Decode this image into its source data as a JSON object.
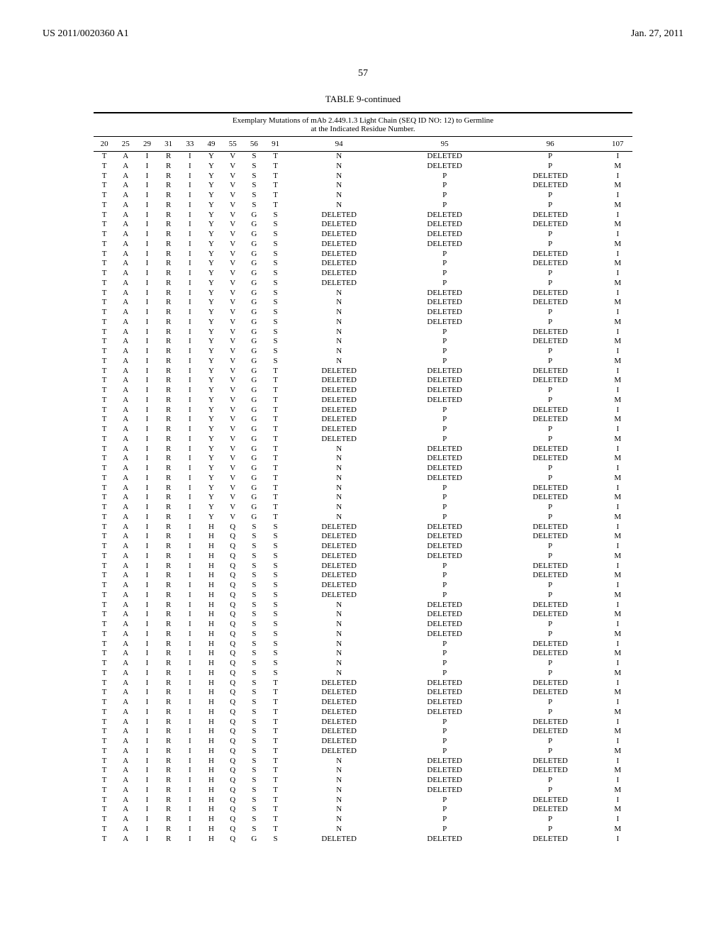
{
  "header": {
    "pub_number": "US 2011/0020360 A1",
    "pub_date": "Jan. 27, 2011",
    "page_num": "57"
  },
  "table": {
    "caption": "TABLE 9-continued",
    "title": "Exemplary Mutations of mAb 2.449.1.3 Light Chain (SEQ ID NO: 12) to Germline",
    "subtitle": "at the Indicated Residue Number.",
    "columns": [
      "20",
      "25",
      "29",
      "31",
      "33",
      "49",
      "55",
      "56",
      "91",
      "94",
      "95",
      "96",
      "107"
    ],
    "rows": [
      [
        "T",
        "A",
        "I",
        "R",
        "I",
        "Y",
        "V",
        "S",
        "T",
        "N",
        "DELETED",
        "P",
        "I"
      ],
      [
        "T",
        "A",
        "I",
        "R",
        "I",
        "Y",
        "V",
        "S",
        "T",
        "N",
        "DELETED",
        "P",
        "M"
      ],
      [
        "T",
        "A",
        "I",
        "R",
        "I",
        "Y",
        "V",
        "S",
        "T",
        "N",
        "P",
        "DELETED",
        "I"
      ],
      [
        "T",
        "A",
        "I",
        "R",
        "I",
        "Y",
        "V",
        "S",
        "T",
        "N",
        "P",
        "DELETED",
        "M"
      ],
      [
        "T",
        "A",
        "I",
        "R",
        "I",
        "Y",
        "V",
        "S",
        "T",
        "N",
        "P",
        "P",
        "I"
      ],
      [
        "T",
        "A",
        "I",
        "R",
        "I",
        "Y",
        "V",
        "S",
        "T",
        "N",
        "P",
        "P",
        "M"
      ],
      [
        "T",
        "A",
        "I",
        "R",
        "I",
        "Y",
        "V",
        "G",
        "S",
        "DELETED",
        "DELETED",
        "DELETED",
        "I"
      ],
      [
        "T",
        "A",
        "I",
        "R",
        "I",
        "Y",
        "V",
        "G",
        "S",
        "DELETED",
        "DELETED",
        "DELETED",
        "M"
      ],
      [
        "T",
        "A",
        "I",
        "R",
        "I",
        "Y",
        "V",
        "G",
        "S",
        "DELETED",
        "DELETED",
        "P",
        "I"
      ],
      [
        "T",
        "A",
        "I",
        "R",
        "I",
        "Y",
        "V",
        "G",
        "S",
        "DELETED",
        "DELETED",
        "P",
        "M"
      ],
      [
        "T",
        "A",
        "I",
        "R",
        "I",
        "Y",
        "V",
        "G",
        "S",
        "DELETED",
        "P",
        "DELETED",
        "I"
      ],
      [
        "T",
        "A",
        "I",
        "R",
        "I",
        "Y",
        "V",
        "G",
        "S",
        "DELETED",
        "P",
        "DELETED",
        "M"
      ],
      [
        "T",
        "A",
        "I",
        "R",
        "I",
        "Y",
        "V",
        "G",
        "S",
        "DELETED",
        "P",
        "P",
        "I"
      ],
      [
        "T",
        "A",
        "I",
        "R",
        "I",
        "Y",
        "V",
        "G",
        "S",
        "DELETED",
        "P",
        "P",
        "M"
      ],
      [
        "T",
        "A",
        "I",
        "R",
        "I",
        "Y",
        "V",
        "G",
        "S",
        "N",
        "DELETED",
        "DELETED",
        "I"
      ],
      [
        "T",
        "A",
        "I",
        "R",
        "I",
        "Y",
        "V",
        "G",
        "S",
        "N",
        "DELETED",
        "DELETED",
        "M"
      ],
      [
        "T",
        "A",
        "I",
        "R",
        "I",
        "Y",
        "V",
        "G",
        "S",
        "N",
        "DELETED",
        "P",
        "I"
      ],
      [
        "T",
        "A",
        "I",
        "R",
        "I",
        "Y",
        "V",
        "G",
        "S",
        "N",
        "DELETED",
        "P",
        "M"
      ],
      [
        "T",
        "A",
        "I",
        "R",
        "I",
        "Y",
        "V",
        "G",
        "S",
        "N",
        "P",
        "DELETED",
        "I"
      ],
      [
        "T",
        "A",
        "I",
        "R",
        "I",
        "Y",
        "V",
        "G",
        "S",
        "N",
        "P",
        "DELETED",
        "M"
      ],
      [
        "T",
        "A",
        "I",
        "R",
        "I",
        "Y",
        "V",
        "G",
        "S",
        "N",
        "P",
        "P",
        "I"
      ],
      [
        "T",
        "A",
        "I",
        "R",
        "I",
        "Y",
        "V",
        "G",
        "S",
        "N",
        "P",
        "P",
        "M"
      ],
      [
        "T",
        "A",
        "I",
        "R",
        "I",
        "Y",
        "V",
        "G",
        "T",
        "DELETED",
        "DELETED",
        "DELETED",
        "I"
      ],
      [
        "T",
        "A",
        "I",
        "R",
        "I",
        "Y",
        "V",
        "G",
        "T",
        "DELETED",
        "DELETED",
        "DELETED",
        "M"
      ],
      [
        "T",
        "A",
        "I",
        "R",
        "I",
        "Y",
        "V",
        "G",
        "T",
        "DELETED",
        "DELETED",
        "P",
        "I"
      ],
      [
        "T",
        "A",
        "I",
        "R",
        "I",
        "Y",
        "V",
        "G",
        "T",
        "DELETED",
        "DELETED",
        "P",
        "M"
      ],
      [
        "T",
        "A",
        "I",
        "R",
        "I",
        "Y",
        "V",
        "G",
        "T",
        "DELETED",
        "P",
        "DELETED",
        "I"
      ],
      [
        "T",
        "A",
        "I",
        "R",
        "I",
        "Y",
        "V",
        "G",
        "T",
        "DELETED",
        "P",
        "DELETED",
        "M"
      ],
      [
        "T",
        "A",
        "I",
        "R",
        "I",
        "Y",
        "V",
        "G",
        "T",
        "DELETED",
        "P",
        "P",
        "I"
      ],
      [
        "T",
        "A",
        "I",
        "R",
        "I",
        "Y",
        "V",
        "G",
        "T",
        "DELETED",
        "P",
        "P",
        "M"
      ],
      [
        "T",
        "A",
        "I",
        "R",
        "I",
        "Y",
        "V",
        "G",
        "T",
        "N",
        "DELETED",
        "DELETED",
        "I"
      ],
      [
        "T",
        "A",
        "I",
        "R",
        "I",
        "Y",
        "V",
        "G",
        "T",
        "N",
        "DELETED",
        "DELETED",
        "M"
      ],
      [
        "T",
        "A",
        "I",
        "R",
        "I",
        "Y",
        "V",
        "G",
        "T",
        "N",
        "DELETED",
        "P",
        "I"
      ],
      [
        "T",
        "A",
        "I",
        "R",
        "I",
        "Y",
        "V",
        "G",
        "T",
        "N",
        "DELETED",
        "P",
        "M"
      ],
      [
        "T",
        "A",
        "I",
        "R",
        "I",
        "Y",
        "V",
        "G",
        "T",
        "N",
        "P",
        "DELETED",
        "I"
      ],
      [
        "T",
        "A",
        "I",
        "R",
        "I",
        "Y",
        "V",
        "G",
        "T",
        "N",
        "P",
        "DELETED",
        "M"
      ],
      [
        "T",
        "A",
        "I",
        "R",
        "I",
        "Y",
        "V",
        "G",
        "T",
        "N",
        "P",
        "P",
        "I"
      ],
      [
        "T",
        "A",
        "I",
        "R",
        "I",
        "Y",
        "V",
        "G",
        "T",
        "N",
        "P",
        "P",
        "M"
      ],
      [
        "T",
        "A",
        "I",
        "R",
        "I",
        "H",
        "Q",
        "S",
        "S",
        "DELETED",
        "DELETED",
        "DELETED",
        "I"
      ],
      [
        "T",
        "A",
        "I",
        "R",
        "I",
        "H",
        "Q",
        "S",
        "S",
        "DELETED",
        "DELETED",
        "DELETED",
        "M"
      ],
      [
        "T",
        "A",
        "I",
        "R",
        "I",
        "H",
        "Q",
        "S",
        "S",
        "DELETED",
        "DELETED",
        "P",
        "I"
      ],
      [
        "T",
        "A",
        "I",
        "R",
        "I",
        "H",
        "Q",
        "S",
        "S",
        "DELETED",
        "DELETED",
        "P",
        "M"
      ],
      [
        "T",
        "A",
        "I",
        "R",
        "I",
        "H",
        "Q",
        "S",
        "S",
        "DELETED",
        "P",
        "DELETED",
        "I"
      ],
      [
        "T",
        "A",
        "I",
        "R",
        "I",
        "H",
        "Q",
        "S",
        "S",
        "DELETED",
        "P",
        "DELETED",
        "M"
      ],
      [
        "T",
        "A",
        "I",
        "R",
        "I",
        "H",
        "Q",
        "S",
        "S",
        "DELETED",
        "P",
        "P",
        "I"
      ],
      [
        "T",
        "A",
        "I",
        "R",
        "I",
        "H",
        "Q",
        "S",
        "S",
        "DELETED",
        "P",
        "P",
        "M"
      ],
      [
        "T",
        "A",
        "I",
        "R",
        "I",
        "H",
        "Q",
        "S",
        "S",
        "N",
        "DELETED",
        "DELETED",
        "I"
      ],
      [
        "T",
        "A",
        "I",
        "R",
        "I",
        "H",
        "Q",
        "S",
        "S",
        "N",
        "DELETED",
        "DELETED",
        "M"
      ],
      [
        "T",
        "A",
        "I",
        "R",
        "I",
        "H",
        "Q",
        "S",
        "S",
        "N",
        "DELETED",
        "P",
        "I"
      ],
      [
        "T",
        "A",
        "I",
        "R",
        "I",
        "H",
        "Q",
        "S",
        "S",
        "N",
        "DELETED",
        "P",
        "M"
      ],
      [
        "T",
        "A",
        "I",
        "R",
        "I",
        "H",
        "Q",
        "S",
        "S",
        "N",
        "P",
        "DELETED",
        "I"
      ],
      [
        "T",
        "A",
        "I",
        "R",
        "I",
        "H",
        "Q",
        "S",
        "S",
        "N",
        "P",
        "DELETED",
        "M"
      ],
      [
        "T",
        "A",
        "I",
        "R",
        "I",
        "H",
        "Q",
        "S",
        "S",
        "N",
        "P",
        "P",
        "I"
      ],
      [
        "T",
        "A",
        "I",
        "R",
        "I",
        "H",
        "Q",
        "S",
        "S",
        "N",
        "P",
        "P",
        "M"
      ],
      [
        "T",
        "A",
        "I",
        "R",
        "I",
        "H",
        "Q",
        "S",
        "T",
        "DELETED",
        "DELETED",
        "DELETED",
        "I"
      ],
      [
        "T",
        "A",
        "I",
        "R",
        "I",
        "H",
        "Q",
        "S",
        "T",
        "DELETED",
        "DELETED",
        "DELETED",
        "M"
      ],
      [
        "T",
        "A",
        "I",
        "R",
        "I",
        "H",
        "Q",
        "S",
        "T",
        "DELETED",
        "DELETED",
        "P",
        "I"
      ],
      [
        "T",
        "A",
        "I",
        "R",
        "I",
        "H",
        "Q",
        "S",
        "T",
        "DELETED",
        "DELETED",
        "P",
        "M"
      ],
      [
        "T",
        "A",
        "I",
        "R",
        "I",
        "H",
        "Q",
        "S",
        "T",
        "DELETED",
        "P",
        "DELETED",
        "I"
      ],
      [
        "T",
        "A",
        "I",
        "R",
        "I",
        "H",
        "Q",
        "S",
        "T",
        "DELETED",
        "P",
        "DELETED",
        "M"
      ],
      [
        "T",
        "A",
        "I",
        "R",
        "I",
        "H",
        "Q",
        "S",
        "T",
        "DELETED",
        "P",
        "P",
        "I"
      ],
      [
        "T",
        "A",
        "I",
        "R",
        "I",
        "H",
        "Q",
        "S",
        "T",
        "DELETED",
        "P",
        "P",
        "M"
      ],
      [
        "T",
        "A",
        "I",
        "R",
        "I",
        "H",
        "Q",
        "S",
        "T",
        "N",
        "DELETED",
        "DELETED",
        "I"
      ],
      [
        "T",
        "A",
        "I",
        "R",
        "I",
        "H",
        "Q",
        "S",
        "T",
        "N",
        "DELETED",
        "DELETED",
        "M"
      ],
      [
        "T",
        "A",
        "I",
        "R",
        "I",
        "H",
        "Q",
        "S",
        "T",
        "N",
        "DELETED",
        "P",
        "I"
      ],
      [
        "T",
        "A",
        "I",
        "R",
        "I",
        "H",
        "Q",
        "S",
        "T",
        "N",
        "DELETED",
        "P",
        "M"
      ],
      [
        "T",
        "A",
        "I",
        "R",
        "I",
        "H",
        "Q",
        "S",
        "T",
        "N",
        "P",
        "DELETED",
        "I"
      ],
      [
        "T",
        "A",
        "I",
        "R",
        "I",
        "H",
        "Q",
        "S",
        "T",
        "N",
        "P",
        "DELETED",
        "M"
      ],
      [
        "T",
        "A",
        "I",
        "R",
        "I",
        "H",
        "Q",
        "S",
        "T",
        "N",
        "P",
        "P",
        "I"
      ],
      [
        "T",
        "A",
        "I",
        "R",
        "I",
        "H",
        "Q",
        "S",
        "T",
        "N",
        "P",
        "P",
        "M"
      ],
      [
        "T",
        "A",
        "I",
        "R",
        "I",
        "H",
        "Q",
        "G",
        "S",
        "DELETED",
        "DELETED",
        "DELETED",
        "I"
      ]
    ]
  }
}
